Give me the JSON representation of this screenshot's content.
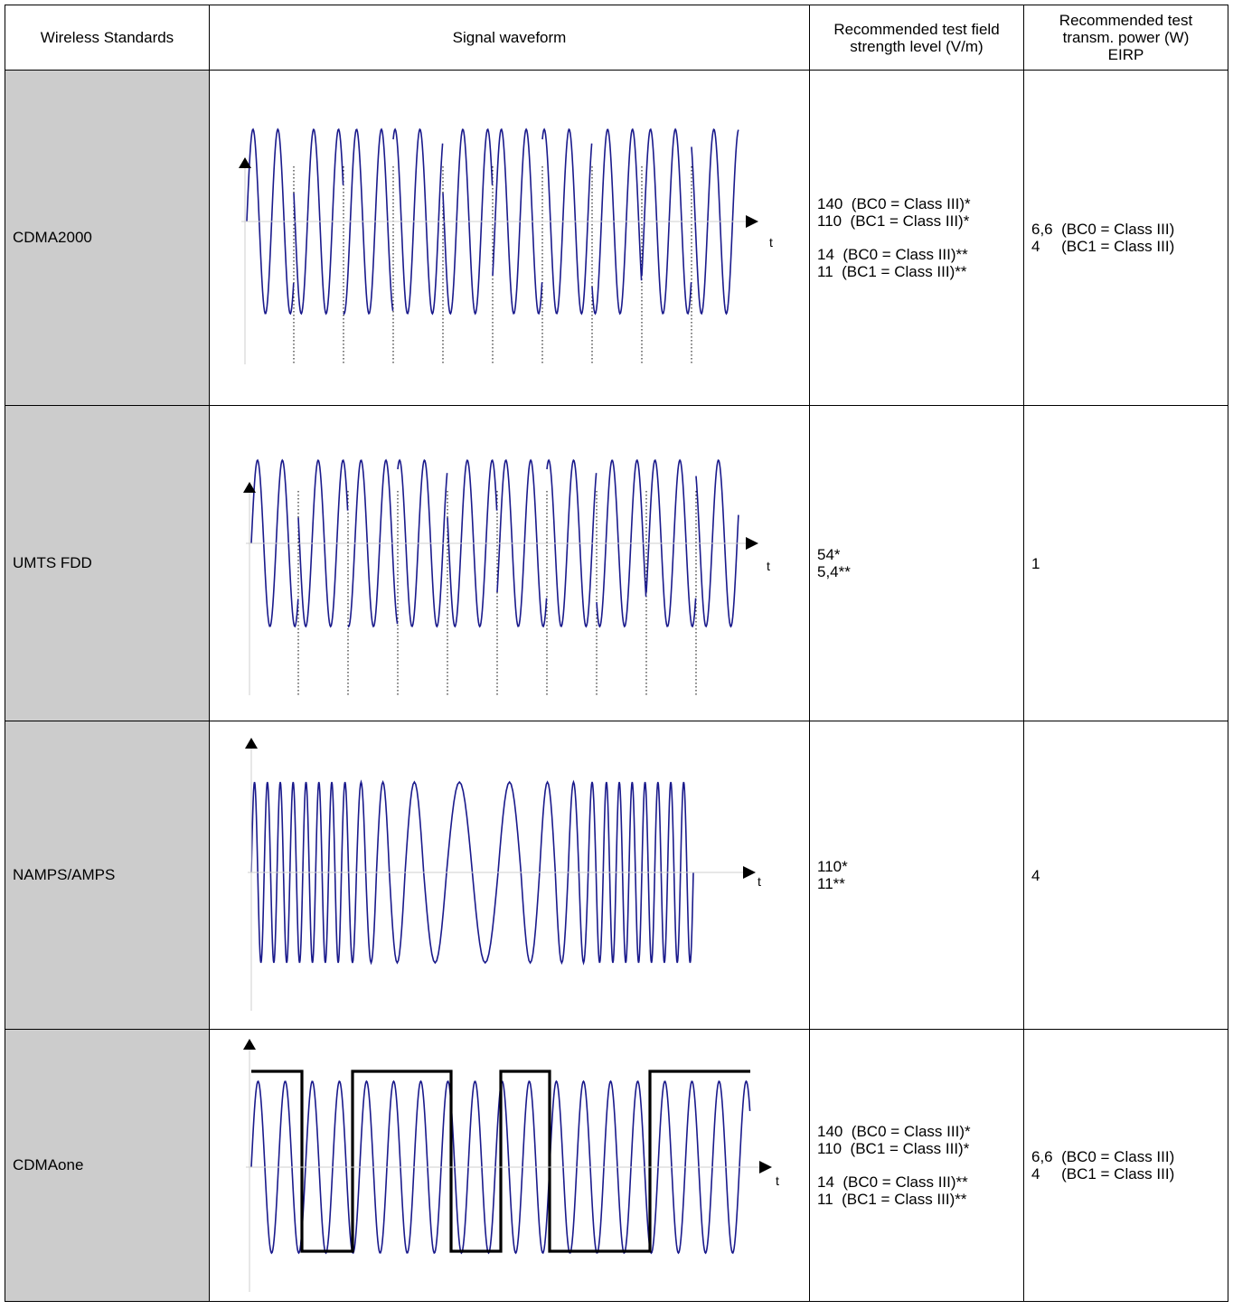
{
  "headers": {
    "standards": "Wireless Standards",
    "waveform": "Signal waveform",
    "field_strength_l1": "Recommended test field",
    "field_strength_l2": "strength level (V/m)",
    "power_l1": "Recommended test",
    "power_l2": "transm. power (W)",
    "power_l3": "EIRP"
  },
  "axis_t": "t",
  "rows": [
    {
      "standard": "CDMA2000",
      "field_a1": "140  (BC0 = Class III)*",
      "field_a2": "110  (BC1 = Class III)*",
      "field_b1": "14  (BC0 = Class III)**",
      "field_b2": "11  (BC1 = Class III)**",
      "power_1": "6,6  (BC0 = Class III)",
      "power_2": "4     (BC1 = Class III)"
    },
    {
      "standard": "UMTS FDD",
      "field_a1": "54*",
      "field_a2": "5,4**",
      "power_1": "1"
    },
    {
      "standard": "NAMPS/AMPS",
      "field_a1": "110*",
      "field_a2": "11**",
      "power_1": "4"
    },
    {
      "standard": "CDMAone",
      "field_a1": "140  (BC0 = Class III)*",
      "field_a2": "110  (BC1 = Class III)*",
      "field_b1": "14  (BC0 = Class III)**",
      "field_b2": "11  (BC1 = Class III)**",
      "power_1": "6,6  (BC0 = Class III)",
      "power_2": "4     (BC1 = Class III)"
    }
  ],
  "colors": {
    "wave": "#1a1a8c",
    "gate": "#000000",
    "standard_bg": "#cccccc"
  }
}
